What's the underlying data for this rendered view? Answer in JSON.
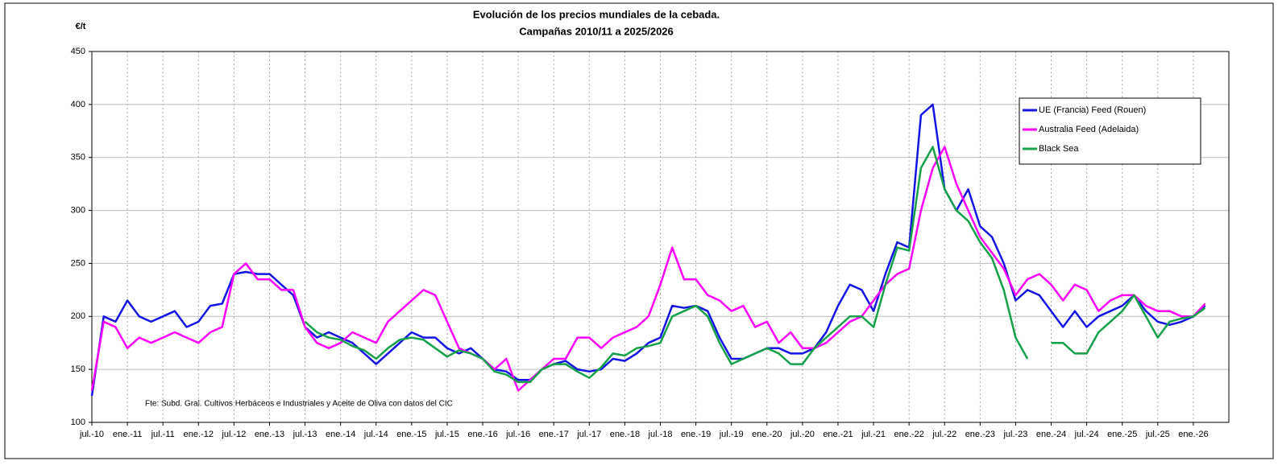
{
  "chart_data": {
    "type": "line",
    "title": "Evolución de los precios mundiales de la cebada.",
    "subtitle": "Campañas 2010/11 a 2025/2026",
    "y_label": "€/t",
    "annotation": "Fte: Subd. Gral. Cultivos Herbáceos e Industriales y Aceite de Oliva con datos del CIC",
    "x": [
      "2010-07",
      "2010-09",
      "2010-11",
      "2011-01",
      "2011-03",
      "2011-05",
      "2011-07",
      "2011-09",
      "2011-11",
      "2012-01",
      "2012-03",
      "2012-05",
      "2012-07",
      "2012-09",
      "2012-11",
      "2013-01",
      "2013-03",
      "2013-05",
      "2013-07",
      "2013-09",
      "2013-11",
      "2014-01",
      "2014-03",
      "2014-05",
      "2014-07",
      "2014-09",
      "2014-11",
      "2015-01",
      "2015-03",
      "2015-05",
      "2015-07",
      "2015-09",
      "2015-11",
      "2016-01",
      "2016-03",
      "2016-05",
      "2016-07",
      "2016-09",
      "2016-11",
      "2017-01",
      "2017-03",
      "2017-05",
      "2017-07",
      "2017-09",
      "2017-11",
      "2018-01",
      "2018-03",
      "2018-05",
      "2018-07",
      "2018-09",
      "2018-11",
      "2019-01",
      "2019-03",
      "2019-05",
      "2019-07",
      "2019-09",
      "2019-11",
      "2020-01",
      "2020-03",
      "2020-05",
      "2020-07",
      "2020-09",
      "2020-11",
      "2021-01",
      "2021-03",
      "2021-05",
      "2021-07",
      "2021-09",
      "2021-11",
      "2022-01",
      "2022-03",
      "2022-05",
      "2022-07",
      "2022-09",
      "2022-11",
      "2023-01",
      "2023-03",
      "2023-05",
      "2023-07",
      "2023-09",
      "2023-11",
      "2024-01",
      "2024-03",
      "2024-05",
      "2024-07",
      "2024-09",
      "2024-11",
      "2025-01",
      "2025-03",
      "2025-05",
      "2025-07",
      "2025-09",
      "2025-11",
      "2026-01",
      "2026-03"
    ],
    "series": [
      {
        "name": "UE (Francia) Feed (Rouen)",
        "color": "#1414e6",
        "values": [
          125,
          200,
          195,
          215,
          200,
          195,
          200,
          205,
          190,
          195,
          210,
          212,
          240,
          242,
          240,
          240,
          230,
          220,
          190,
          180,
          185,
          180,
          175,
          165,
          155,
          165,
          175,
          185,
          180,
          180,
          170,
          165,
          170,
          160,
          150,
          148,
          140,
          140,
          150,
          155,
          158,
          150,
          148,
          150,
          160,
          158,
          165,
          175,
          180,
          210,
          208,
          210,
          205,
          180,
          160,
          160,
          165,
          170,
          170,
          165,
          165,
          170,
          185,
          210,
          230,
          225,
          205,
          240,
          270,
          265,
          390,
          400,
          320,
          300,
          320,
          285,
          275,
          250,
          215,
          225,
          220,
          205,
          190,
          205,
          190,
          200,
          205,
          210,
          220,
          205,
          195,
          192,
          195,
          200,
          210
        ]
      },
      {
        "name": "Australia Feed (Adelaida)",
        "color": "#ff00ff",
        "values": [
          130,
          195,
          190,
          170,
          180,
          175,
          180,
          185,
          180,
          175,
          185,
          190,
          240,
          250,
          235,
          235,
          225,
          225,
          190,
          175,
          170,
          175,
          185,
          180,
          175,
          195,
          205,
          215,
          225,
          220,
          195,
          170,
          165,
          160,
          150,
          160,
          130,
          140,
          150,
          160,
          160,
          180,
          180,
          170,
          180,
          185,
          190,
          200,
          230,
          265,
          235,
          235,
          220,
          215,
          205,
          210,
          190,
          195,
          175,
          185,
          170,
          170,
          175,
          185,
          195,
          200,
          215,
          230,
          240,
          245,
          300,
          340,
          360,
          325,
          300,
          275,
          260,
          245,
          220,
          235,
          240,
          230,
          215,
          230,
          225,
          205,
          215,
          220,
          220,
          210,
          205,
          205,
          200,
          200,
          212
        ]
      },
      {
        "name": "Black Sea",
        "color": "#16a04a",
        "values": [
          null,
          null,
          null,
          null,
          null,
          null,
          null,
          null,
          null,
          null,
          null,
          null,
          null,
          null,
          null,
          null,
          null,
          null,
          195,
          185,
          180,
          178,
          172,
          168,
          160,
          170,
          178,
          180,
          178,
          170,
          162,
          168,
          165,
          160,
          148,
          145,
          138,
          138,
          150,
          155,
          155,
          148,
          142,
          152,
          165,
          163,
          170,
          172,
          175,
          200,
          205,
          210,
          200,
          175,
          155,
          160,
          165,
          170,
          165,
          155,
          155,
          170,
          180,
          190,
          200,
          200,
          190,
          230,
          265,
          262,
          340,
          360,
          320,
          300,
          290,
          270,
          255,
          225,
          180,
          160,
          null,
          175,
          175,
          165,
          165,
          185,
          195,
          205,
          220,
          200,
          180,
          195,
          198,
          200,
          208
        ]
      }
    ],
    "xlim": [
      "2010-07",
      "2026-07"
    ],
    "xticks": [
      {
        "value": "2010-07",
        "label": "jul.-10"
      },
      {
        "value": "2011-01",
        "label": "ene.-11"
      },
      {
        "value": "2011-07",
        "label": "jul.-11"
      },
      {
        "value": "2012-01",
        "label": "ene.-12"
      },
      {
        "value": "2012-07",
        "label": "jul.-12"
      },
      {
        "value": "2013-01",
        "label": "ene.-13"
      },
      {
        "value": "2013-07",
        "label": "jul.-13"
      },
      {
        "value": "2014-01",
        "label": "ene.-14"
      },
      {
        "value": "2014-07",
        "label": "jul.-14"
      },
      {
        "value": "2015-01",
        "label": "ene.-15"
      },
      {
        "value": "2015-07",
        "label": "jul.-15"
      },
      {
        "value": "2016-01",
        "label": "ene.-16"
      },
      {
        "value": "2016-07",
        "label": "jul.-16"
      },
      {
        "value": "2017-01",
        "label": "ene.-17"
      },
      {
        "value": "2017-07",
        "label": "jul.-17"
      },
      {
        "value": "2018-01",
        "label": "ene.-18"
      },
      {
        "value": "2018-07",
        "label": "jul.-18"
      },
      {
        "value": "2019-01",
        "label": "ene.-19"
      },
      {
        "value": "2019-07",
        "label": "jul.-19"
      },
      {
        "value": "2020-01",
        "label": "ene.-20"
      },
      {
        "value": "2020-07",
        "label": "jul.-20"
      },
      {
        "value": "2021-01",
        "label": "ene.-21"
      },
      {
        "value": "2021-07",
        "label": "jul.-21"
      },
      {
        "value": "2022-01",
        "label": "ene.-22"
      },
      {
        "value": "2022-07",
        "label": "jul.-22"
      },
      {
        "value": "2023-01",
        "label": "ene.-23"
      },
      {
        "value": "2023-07",
        "label": "jul.-23"
      },
      {
        "value": "2024-01",
        "label": "ene.-24"
      },
      {
        "value": "2024-07",
        "label": "jul.-24"
      },
      {
        "value": "2025-01",
        "label": "ene.-25"
      },
      {
        "value": "2025-07",
        "label": "jul.-25"
      },
      {
        "value": "2026-01",
        "label": "ene.-26"
      }
    ],
    "ylim": [
      100,
      450
    ],
    "yticks": [
      100,
      150,
      200,
      250,
      300,
      350,
      400,
      450
    ],
    "grid": true,
    "legend": "upper right"
  }
}
